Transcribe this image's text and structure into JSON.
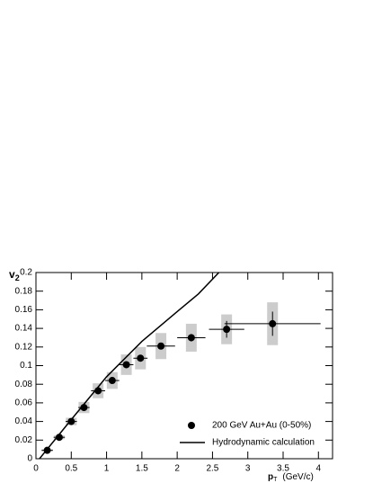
{
  "chart_data": {
    "type": "errorbar",
    "x_label": {
      "main": "p",
      "sub": "T",
      "unit": "(GeV/c)"
    },
    "y_label": {
      "main": "v",
      "sub": "2"
    },
    "xlim": [
      0,
      4.2
    ],
    "ylim": [
      0,
      0.2
    ],
    "xticks": [
      0,
      0.5,
      1,
      1.5,
      2,
      2.5,
      3,
      3.5,
      4
    ],
    "yticks": [
      0,
      0.02,
      0.04,
      0.06,
      0.08,
      0.1,
      0.12,
      0.14,
      0.16,
      0.18,
      0.2
    ],
    "legend": "lower right",
    "series": [
      {
        "name": "200 GeV Au+Au (0-50%)",
        "type": "scatter",
        "color": "#000000",
        "syscolor": "#cccccc",
        "x": [
          0.16,
          0.33,
          0.5,
          0.68,
          0.88,
          1.08,
          1.28,
          1.48,
          1.77,
          2.2,
          2.7,
          3.35
        ],
        "values": [
          0.009,
          0.023,
          0.04,
          0.055,
          0.073,
          0.084,
          0.101,
          0.108,
          0.121,
          0.13,
          0.139,
          0.145
        ],
        "xerr": [
          0.08,
          0.08,
          0.08,
          0.08,
          0.1,
          0.1,
          0.1,
          0.1,
          0.2,
          0.2,
          0.25,
          0.68
        ],
        "yerr": [
          0.001,
          0.001,
          0.001,
          0.001,
          0.002,
          0.002,
          0.002,
          0.002,
          0.003,
          0.004,
          0.009,
          0.013
        ],
        "syserr": [
          0.001,
          0.002,
          0.004,
          0.006,
          0.008,
          0.009,
          0.011,
          0.012,
          0.014,
          0.015,
          0.016,
          0.023
        ]
      },
      {
        "name": "Hydrodynamic calculation",
        "type": "line",
        "color": "#000000",
        "x": [
          0.05,
          0.5,
          1.0,
          1.5,
          2.0,
          2.3,
          2.59
        ],
        "values": [
          0,
          0.042,
          0.088,
          0.126,
          0.158,
          0.177,
          0.2
        ]
      }
    ]
  }
}
